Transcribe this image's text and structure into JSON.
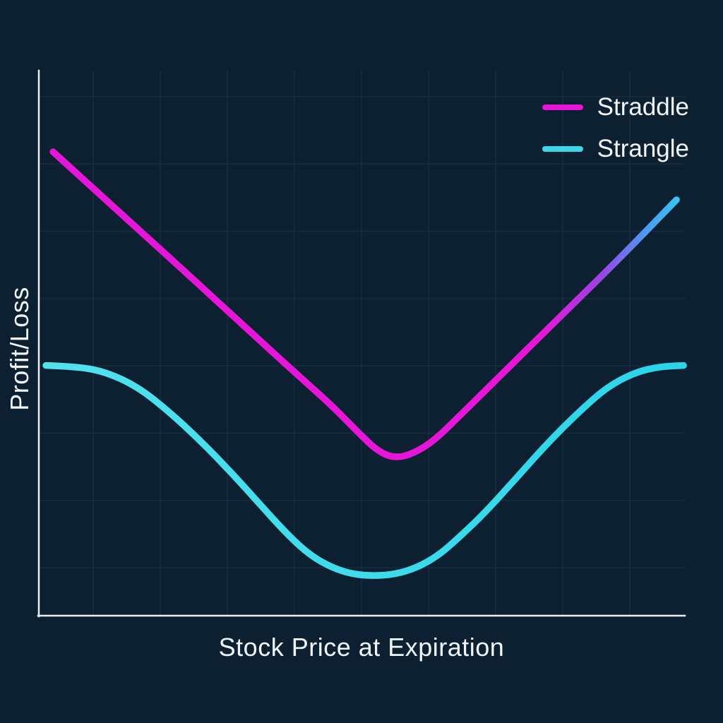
{
  "chart_data": {
    "type": "line",
    "title": "",
    "xlabel": "Stock Price at Expiration",
    "ylabel": "Profit/Loss",
    "x_axis": {
      "tick_labels": [],
      "note": "unlabeled axis, values normalized 0-100"
    },
    "y_axis": {
      "tick_labels": [],
      "note": "unlabeled axis, values normalized 0-100 (0 = plot bottom)"
    },
    "grid": true,
    "legend_position": "top-right",
    "series": [
      {
        "name": "Straddle",
        "legend_color": "#e616d8",
        "gradient": [
          {
            "offset": 0,
            "color": "#e616d8"
          },
          {
            "offset": 0.78,
            "color": "#e616d8"
          },
          {
            "offset": 0.87,
            "color": "#9b43e6"
          },
          {
            "offset": 0.94,
            "color": "#4b9bf0"
          },
          {
            "offset": 1,
            "color": "#35ccf0"
          }
        ],
        "points": [
          [
            2.2,
            85.1
          ],
          [
            12.0,
            74.5
          ],
          [
            21.9,
            63.9
          ],
          [
            31.7,
            53.2
          ],
          [
            40.4,
            43.8
          ],
          [
            45.4,
            38.5
          ],
          [
            49.2,
            33.9
          ],
          [
            52.5,
            30.1
          ],
          [
            55.2,
            28.9
          ],
          [
            57.9,
            29.7
          ],
          [
            61.2,
            32.1
          ],
          [
            65.6,
            37.2
          ],
          [
            72.7,
            45.5
          ],
          [
            80.3,
            54.4
          ],
          [
            89.1,
            64.6
          ],
          [
            98.7,
            76.3
          ]
        ]
      },
      {
        "name": "Strangle",
        "legend_color": "#39d9e9",
        "gradient": [
          {
            "offset": 0,
            "color": "#52e2ee"
          },
          {
            "offset": 1,
            "color": "#2bd4e9"
          }
        ],
        "points": [
          [
            1.1,
            45.9
          ],
          [
            6.0,
            45.7
          ],
          [
            10.4,
            44.7
          ],
          [
            15.3,
            42.0
          ],
          [
            20.2,
            37.4
          ],
          [
            25.1,
            32.0
          ],
          [
            30.1,
            25.9
          ],
          [
            35.0,
            19.4
          ],
          [
            38.8,
            14.5
          ],
          [
            42.1,
            11.0
          ],
          [
            45.4,
            8.8
          ],
          [
            48.6,
            7.6
          ],
          [
            51.9,
            7.3
          ],
          [
            55.2,
            7.6
          ],
          [
            58.5,
            8.8
          ],
          [
            61.8,
            11.0
          ],
          [
            65.0,
            14.3
          ],
          [
            68.9,
            18.7
          ],
          [
            73.8,
            25.1
          ],
          [
            78.7,
            31.6
          ],
          [
            83.6,
            37.4
          ],
          [
            88.0,
            42.0
          ],
          [
            92.4,
            44.7
          ],
          [
            96.2,
            45.7
          ],
          [
            99.8,
            45.9
          ]
        ]
      }
    ]
  },
  "colors": {
    "background": "#0d2031",
    "axis": "#e7edf2",
    "grid": "#172c40",
    "text": "#f2f6f8",
    "straddle": "#e616d8",
    "strangle": "#39d9e9"
  }
}
